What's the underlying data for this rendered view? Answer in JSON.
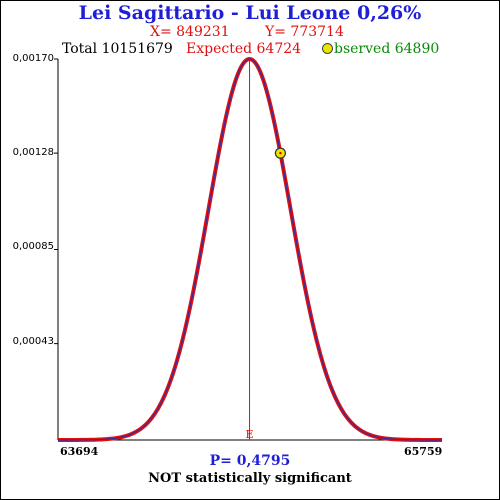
{
  "header": {
    "title": "Lei Sagittario - Lui Leone  0,26%",
    "x_text": "X= 849231",
    "y_text": "Y= 773714",
    "total_text": "Total  10151679",
    "expected_text": "Expected  64724",
    "observed_text": "bserved  64890"
  },
  "footer": {
    "p_text": "P= 0,4795",
    "verdict": "NOT statistically significant"
  },
  "colors": {
    "title": "#1f1fd6",
    "red": "#e01010",
    "green": "#0a8a0a",
    "curve_outer": "#dd1111",
    "curve_inner": "#3a2aa0",
    "marker": "#e9e400"
  },
  "chart_data": {
    "type": "line",
    "title": "Lei Sagittario - Lui Leone  0,26%",
    "x_range": [
      63694,
      65759
    ],
    "x_tick_labels": [
      "63694",
      "65759"
    ],
    "y_range": [
      0,
      0.0017
    ],
    "y_tick_labels": [
      "0,00170",
      "0,00128",
      "0,00085",
      "0,00043"
    ],
    "y_tick_values": [
      0.0017,
      0.00128,
      0.00085,
      0.00043
    ],
    "series": [
      {
        "distribution": "normal",
        "mean": 64724,
        "peak": 0.0017
      }
    ],
    "expected_marker": {
      "x": 64724,
      "label": "E"
    },
    "observed_point": {
      "x": 64890,
      "y": 0.00128
    },
    "grid": false
  }
}
